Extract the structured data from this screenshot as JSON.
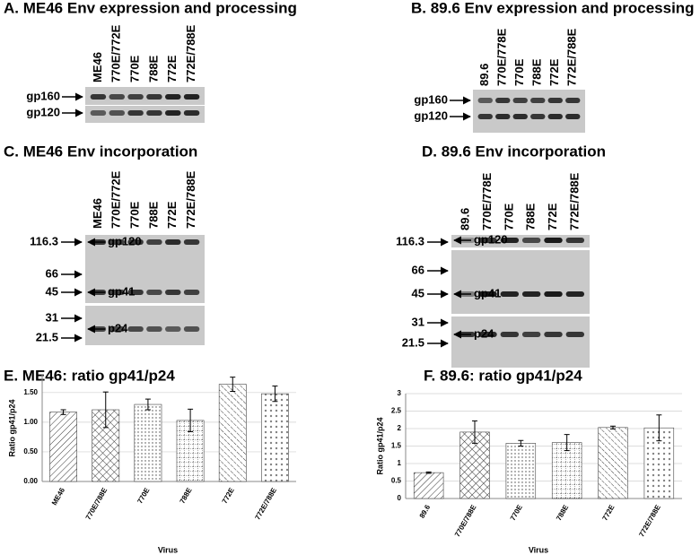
{
  "panels": [
    {
      "title": "A. ME46 Env expression and processing",
      "lanes": [
        "ME46",
        "770E/772E",
        "770E",
        "788E",
        "772E",
        "772E/788E"
      ],
      "bands": [
        "gp160",
        "gp120"
      ]
    },
    {
      "title": "B. 89.6 Env expression and processing",
      "lanes": [
        "89.6",
        "770E/778E",
        "770E",
        "788E",
        "772E",
        "772E/788E"
      ],
      "bands": [
        "gp160",
        "gp120"
      ]
    },
    {
      "title": "C. ME46 Env incorporation",
      "lanes": [
        "ME46",
        "770E/772E",
        "770E",
        "788E",
        "772E",
        "772E/788E"
      ],
      "markers": [
        116.3,
        66,
        45,
        31,
        21.5
      ],
      "bands": [
        "gp120",
        "gp41",
        "p24"
      ]
    },
    {
      "title": "D. 89.6 Env incorporation",
      "lanes": [
        "89.6",
        "770E/778E",
        "770E",
        "788E",
        "772E",
        "772E/788E"
      ],
      "markers": [
        116.3,
        66,
        45,
        31,
        21.5
      ],
      "bands": [
        "gp120",
        "gp41",
        "p24"
      ]
    }
  ],
  "chart_data": [
    {
      "type": "bar",
      "title": "E. ME46: ratio gp41/p24",
      "x_label": "Virus",
      "y_label": "Ratio gp41/p24",
      "categories": [
        "ME46",
        "770E/788E",
        "770E",
        "788E",
        "772E",
        "772E/788E"
      ],
      "values": [
        1.17,
        1.21,
        1.3,
        1.03,
        1.64,
        1.48
      ],
      "errors": [
        0.04,
        0.3,
        0.09,
        0.19,
        0.12,
        0.13
      ],
      "ylim": [
        0,
        1.8
      ],
      "yticks": [
        {
          "value": 0,
          "label": "0.00"
        },
        {
          "value": 0.5,
          "label": "0.50"
        },
        {
          "value": 1,
          "label": "1.00"
        },
        {
          "value": 1.5,
          "label": "1.50"
        }
      ],
      "grid": true
    },
    {
      "type": "bar",
      "title": "F. 89.6: ratio gp41/p24",
      "x_label": "Virus",
      "y_label": "Ratio gp41/p24",
      "categories": [
        "89.6",
        "770E/788E",
        "770E",
        "788E",
        "772E",
        "772E/788E"
      ],
      "values": [
        0.74,
        1.9,
        1.58,
        1.6,
        2.03,
        2.02
      ],
      "errors": [
        0.02,
        0.32,
        0.08,
        0.23,
        0.04,
        0.37
      ],
      "ylim": [
        0,
        3
      ],
      "yticks": [
        0,
        0.5,
        1,
        1.5,
        2,
        2.5,
        3
      ],
      "grid": true
    }
  ]
}
